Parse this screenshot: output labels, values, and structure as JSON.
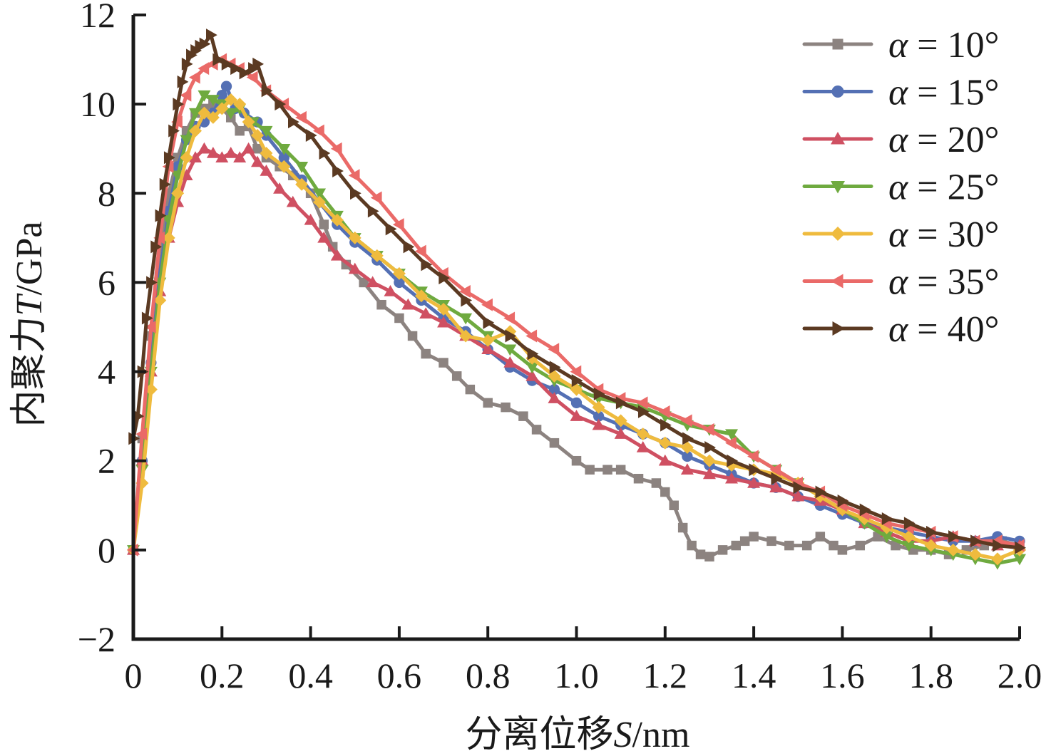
{
  "chart_data": {
    "type": "line",
    "title": "",
    "xlabel": {
      "prefix": "分离位移",
      "var": "S",
      "unit": "/nm"
    },
    "ylabel": {
      "prefix": "内聚力",
      "var": "T",
      "unit": "/GPa"
    },
    "xlim": [
      0,
      2.0
    ],
    "ylim": [
      -2,
      12
    ],
    "xticks": [
      0,
      0.2,
      0.4,
      0.6,
      0.8,
      1.0,
      1.2,
      1.4,
      1.6,
      1.8,
      2.0
    ],
    "xtick_labels": [
      "0",
      "0.2",
      "0.4",
      "0.6",
      "0.8",
      "1.0",
      "1.2",
      "1.4",
      "1.6",
      "1.8",
      "2.0"
    ],
    "yticks": [
      -2,
      0,
      2,
      4,
      6,
      8,
      10,
      12
    ],
    "ytick_labels": [
      "−2",
      "0",
      "2",
      "4",
      "6",
      "8",
      "10",
      "12"
    ],
    "grid": false,
    "legend_position": "top-right",
    "series": [
      {
        "name": "α = 10°",
        "greek": "α",
        "eq": " = ",
        "value": "10°",
        "color": "#8c8380",
        "marker": "square",
        "x": [
          0.0,
          0.02,
          0.04,
          0.06,
          0.08,
          0.1,
          0.12,
          0.14,
          0.16,
          0.18,
          0.2,
          0.22,
          0.24,
          0.26,
          0.28,
          0.3,
          0.33,
          0.36,
          0.4,
          0.43,
          0.45,
          0.48,
          0.52,
          0.56,
          0.6,
          0.63,
          0.66,
          0.7,
          0.73,
          0.76,
          0.8,
          0.84,
          0.88,
          0.91,
          0.95,
          1.0,
          1.03,
          1.07,
          1.1,
          1.14,
          1.18,
          1.2,
          1.22,
          1.24,
          1.26,
          1.28,
          1.3,
          1.33,
          1.36,
          1.38,
          1.4,
          1.44,
          1.48,
          1.52,
          1.55,
          1.58,
          1.6,
          1.64,
          1.68,
          1.72,
          1.76,
          1.8,
          1.84,
          1.88,
          1.92,
          1.96,
          2.0
        ],
        "y": [
          0.0,
          2.5,
          4.8,
          6.8,
          8.0,
          8.8,
          9.4,
          9.8,
          9.9,
          10.0,
          9.9,
          9.7,
          9.4,
          9.5,
          9.0,
          8.8,
          8.6,
          8.4,
          8.0,
          7.3,
          6.8,
          6.4,
          6.0,
          5.5,
          5.2,
          4.8,
          4.4,
          4.2,
          3.9,
          3.6,
          3.3,
          3.2,
          3.0,
          2.7,
          2.4,
          2.0,
          1.8,
          1.8,
          1.8,
          1.6,
          1.5,
          1.3,
          1.0,
          0.5,
          0.1,
          -0.1,
          -0.15,
          0.0,
          0.1,
          0.2,
          0.3,
          0.2,
          0.1,
          0.1,
          0.3,
          0.1,
          0.0,
          0.1,
          0.3,
          0.1,
          0.0,
          0.0,
          -0.1,
          0.0,
          0.1,
          0.2,
          0.1
        ]
      },
      {
        "name": "α = 15°",
        "greek": "α",
        "eq": " = ",
        "value": "15°",
        "color": "#5470b4",
        "marker": "circle",
        "x": [
          0.0,
          0.02,
          0.04,
          0.06,
          0.08,
          0.1,
          0.12,
          0.14,
          0.16,
          0.18,
          0.2,
          0.21,
          0.23,
          0.25,
          0.28,
          0.3,
          0.34,
          0.38,
          0.42,
          0.46,
          0.5,
          0.55,
          0.6,
          0.65,
          0.7,
          0.75,
          0.8,
          0.85,
          0.9,
          0.95,
          1.0,
          1.05,
          1.1,
          1.15,
          1.2,
          1.25,
          1.3,
          1.35,
          1.4,
          1.45,
          1.5,
          1.55,
          1.6,
          1.65,
          1.7,
          1.75,
          1.8,
          1.85,
          1.9,
          1.95,
          2.0
        ],
        "y": [
          0.0,
          2.0,
          4.2,
          6.2,
          7.6,
          8.6,
          9.2,
          9.5,
          9.6,
          9.8,
          10.2,
          10.4,
          9.9,
          9.8,
          9.6,
          9.3,
          8.8,
          8.3,
          7.8,
          7.3,
          6.9,
          6.5,
          6.0,
          5.6,
          5.2,
          4.9,
          4.5,
          4.1,
          3.8,
          3.6,
          3.3,
          3.0,
          2.8,
          2.6,
          2.4,
          2.1,
          1.9,
          1.7,
          1.5,
          1.4,
          1.2,
          1.0,
          0.8,
          0.6,
          0.5,
          0.4,
          0.3,
          0.2,
          0.2,
          0.3,
          0.2
        ]
      },
      {
        "name": "α = 20°",
        "greek": "α",
        "eq": " = ",
        "value": "20°",
        "color": "#cf5062",
        "marker": "triangle-up",
        "x": [
          0.0,
          0.02,
          0.04,
          0.06,
          0.08,
          0.1,
          0.12,
          0.14,
          0.16,
          0.18,
          0.2,
          0.22,
          0.24,
          0.26,
          0.28,
          0.3,
          0.33,
          0.36,
          0.4,
          0.43,
          0.46,
          0.5,
          0.54,
          0.58,
          0.62,
          0.66,
          0.7,
          0.75,
          0.8,
          0.85,
          0.9,
          0.95,
          1.0,
          1.05,
          1.1,
          1.15,
          1.2,
          1.25,
          1.3,
          1.35,
          1.4,
          1.45,
          1.5,
          1.55,
          1.6,
          1.65,
          1.7,
          1.75,
          1.8,
          1.85,
          1.9,
          1.95,
          2.0
        ],
        "y": [
          0.0,
          2.0,
          4.0,
          5.8,
          7.0,
          7.8,
          8.4,
          8.8,
          9.0,
          8.9,
          8.8,
          8.9,
          8.8,
          9.0,
          8.7,
          8.5,
          8.1,
          7.8,
          7.4,
          7.0,
          6.6,
          6.3,
          6.0,
          5.8,
          5.5,
          5.3,
          5.1,
          4.8,
          4.5,
          4.2,
          3.9,
          3.4,
          3.0,
          2.8,
          2.6,
          2.3,
          2.0,
          1.8,
          1.7,
          1.6,
          1.5,
          1.4,
          1.2,
          1.1,
          0.9,
          0.6,
          0.4,
          0.2,
          0.2,
          0.3,
          0.2,
          0.1,
          0.1
        ]
      },
      {
        "name": "α = 25°",
        "greek": "α",
        "eq": " = ",
        "value": "25°",
        "color": "#6faa3f",
        "marker": "triangle-down",
        "x": [
          0.0,
          0.02,
          0.04,
          0.06,
          0.08,
          0.1,
          0.12,
          0.14,
          0.16,
          0.18,
          0.2,
          0.22,
          0.24,
          0.27,
          0.3,
          0.34,
          0.38,
          0.42,
          0.46,
          0.5,
          0.55,
          0.6,
          0.65,
          0.7,
          0.75,
          0.8,
          0.85,
          0.9,
          0.95,
          1.0,
          1.05,
          1.1,
          1.15,
          1.2,
          1.25,
          1.3,
          1.35,
          1.4,
          1.45,
          1.5,
          1.55,
          1.6,
          1.65,
          1.7,
          1.75,
          1.8,
          1.85,
          1.9,
          1.95,
          2.0
        ],
        "y": [
          0.0,
          1.8,
          4.0,
          6.0,
          7.4,
          8.4,
          9.2,
          9.8,
          10.2,
          10.1,
          10.0,
          9.8,
          9.9,
          9.6,
          9.4,
          9.0,
          8.6,
          8.0,
          7.5,
          7.0,
          6.6,
          6.2,
          5.8,
          5.5,
          5.2,
          4.8,
          4.5,
          4.1,
          3.8,
          3.6,
          3.4,
          3.3,
          3.2,
          3.0,
          2.8,
          2.7,
          2.6,
          2.1,
          1.8,
          1.5,
          1.2,
          0.9,
          0.6,
          0.3,
          0.1,
          0.0,
          -0.1,
          -0.2,
          -0.3,
          -0.2
        ]
      },
      {
        "name": "α = 30°",
        "greek": "α",
        "eq": " = ",
        "value": "30°",
        "color": "#efbb3e",
        "marker": "diamond",
        "x": [
          0.0,
          0.02,
          0.04,
          0.06,
          0.08,
          0.1,
          0.12,
          0.14,
          0.16,
          0.18,
          0.2,
          0.22,
          0.24,
          0.26,
          0.28,
          0.3,
          0.34,
          0.38,
          0.42,
          0.46,
          0.5,
          0.55,
          0.6,
          0.65,
          0.7,
          0.75,
          0.8,
          0.85,
          0.9,
          0.95,
          1.0,
          1.05,
          1.1,
          1.15,
          1.2,
          1.25,
          1.3,
          1.35,
          1.4,
          1.45,
          1.5,
          1.55,
          1.6,
          1.65,
          1.7,
          1.75,
          1.8,
          1.85,
          1.9,
          1.95,
          2.0
        ],
        "y": [
          0.0,
          1.5,
          3.6,
          5.6,
          7.0,
          8.0,
          8.8,
          9.4,
          9.8,
          9.7,
          9.9,
          10.1,
          10.0,
          9.6,
          9.3,
          8.9,
          8.6,
          8.2,
          7.8,
          7.4,
          7.0,
          6.6,
          6.2,
          5.7,
          5.4,
          4.8,
          4.7,
          4.9,
          4.3,
          3.9,
          3.6,
          3.2,
          2.9,
          2.6,
          2.4,
          2.3,
          2.0,
          1.9,
          1.8,
          1.7,
          1.5,
          1.2,
          0.9,
          0.7,
          0.5,
          0.3,
          0.1,
          0.0,
          -0.1,
          -0.2,
          0.0
        ]
      },
      {
        "name": "α = 35°",
        "greek": "α",
        "eq": " = ",
        "value": "35°",
        "color": "#ea6a68",
        "marker": "triangle-left",
        "x": [
          0.0,
          0.02,
          0.04,
          0.06,
          0.08,
          0.1,
          0.12,
          0.14,
          0.16,
          0.18,
          0.2,
          0.22,
          0.24,
          0.27,
          0.3,
          0.34,
          0.38,
          0.42,
          0.46,
          0.5,
          0.55,
          0.6,
          0.65,
          0.7,
          0.75,
          0.8,
          0.85,
          0.9,
          0.95,
          1.0,
          1.05,
          1.1,
          1.15,
          1.2,
          1.25,
          1.3,
          1.35,
          1.4,
          1.45,
          1.5,
          1.55,
          1.6,
          1.65,
          1.7,
          1.75,
          1.8,
          1.85,
          1.9,
          1.95,
          2.0
        ],
        "y": [
          0.0,
          2.6,
          5.0,
          7.0,
          8.6,
          9.6,
          10.2,
          10.6,
          10.8,
          10.9,
          11.0,
          10.9,
          10.8,
          10.6,
          10.3,
          10.0,
          9.7,
          9.4,
          9.0,
          8.4,
          7.9,
          7.3,
          6.7,
          6.2,
          5.8,
          5.5,
          5.2,
          4.8,
          4.5,
          4.0,
          3.6,
          3.4,
          3.3,
          3.1,
          2.9,
          2.7,
          2.4,
          2.1,
          1.8,
          1.5,
          1.3,
          1.0,
          0.8,
          0.6,
          0.5,
          0.4,
          0.3,
          0.2,
          0.2,
          0.1
        ]
      },
      {
        "name": "α = 40°",
        "greek": "α",
        "eq": " = ",
        "value": "40°",
        "color": "#5b3a22",
        "marker": "triangle-right",
        "x": [
          0.0,
          0.01,
          0.02,
          0.03,
          0.04,
          0.05,
          0.06,
          0.07,
          0.08,
          0.09,
          0.1,
          0.11,
          0.12,
          0.13,
          0.14,
          0.15,
          0.16,
          0.175,
          0.19,
          0.21,
          0.23,
          0.25,
          0.27,
          0.28,
          0.3,
          0.33,
          0.36,
          0.4,
          0.43,
          0.46,
          0.5,
          0.54,
          0.58,
          0.62,
          0.66,
          0.7,
          0.75,
          0.8,
          0.85,
          0.9,
          0.95,
          1.0,
          1.05,
          1.1,
          1.15,
          1.2,
          1.25,
          1.3,
          1.35,
          1.4,
          1.45,
          1.5,
          1.55,
          1.6,
          1.65,
          1.7,
          1.75,
          1.8,
          1.85,
          1.9,
          1.95,
          2.0
        ],
        "y": [
          2.5,
          3.0,
          4.0,
          5.2,
          6.0,
          6.8,
          7.5,
          8.2,
          8.8,
          9.4,
          10.0,
          10.5,
          10.9,
          11.1,
          11.2,
          11.3,
          11.35,
          11.55,
          11.0,
          10.9,
          10.8,
          10.7,
          10.8,
          10.9,
          10.3,
          10.0,
          9.6,
          9.3,
          8.9,
          8.5,
          8.0,
          7.6,
          7.2,
          6.8,
          6.4,
          6.1,
          5.6,
          5.1,
          4.8,
          4.4,
          4.1,
          3.8,
          3.5,
          3.3,
          3.1,
          2.8,
          2.5,
          2.3,
          2.0,
          1.8,
          1.6,
          1.4,
          1.3,
          1.1,
          0.9,
          0.7,
          0.6,
          0.4,
          0.3,
          0.2,
          0.1,
          0.05
        ]
      }
    ]
  }
}
